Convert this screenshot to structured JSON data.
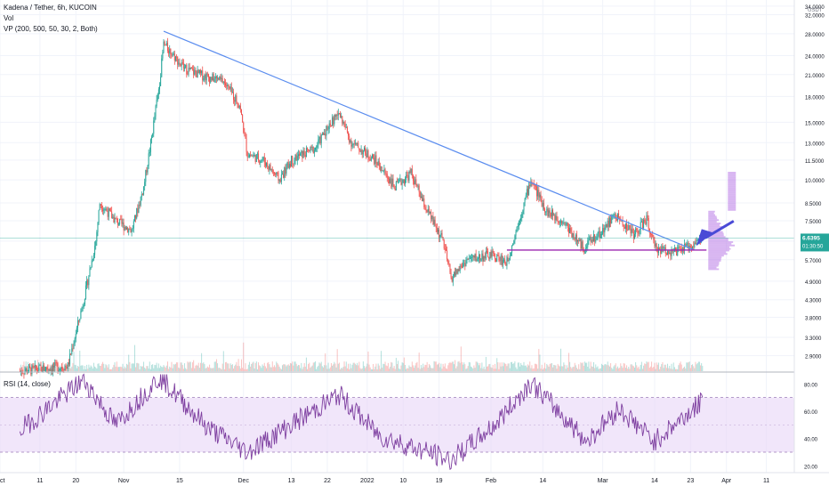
{
  "legend": {
    "symbol": "Kadena / Tether, 6h, KUCOIN",
    "volume": "Vol",
    "volume_profile": "VP (200, 500, 50, 30, 2, Both)",
    "rsi": "RSI (14, close)"
  },
  "price_badge": {
    "value": "6.6395",
    "countdown": "01:30:50"
  },
  "currency_label": "USDT",
  "colors": {
    "up": "#26a69a",
    "down": "#ef5350",
    "trendline": "#5b8def",
    "support": "#9c27b0",
    "rsi_line": "#7e3fa0",
    "rsi_band": "#e7d5f7",
    "price_badge": "#26a69a",
    "arrow": "#4a4ad6",
    "profile": "#b878e6"
  },
  "chart_data": [
    {
      "type": "candlestick",
      "title": "Kadena / Tether, 6h, KUCOIN",
      "y_scale": "log",
      "y_ticks": [
        "34.0000",
        "32.0000",
        "28.0000",
        "24.0000",
        "21.0000",
        "18.0000",
        "15.0000",
        "13.0000",
        "11.5000",
        "10.0000",
        "8.5000",
        "7.5000",
        "6.5000",
        "5.7000",
        "4.9000",
        "4.3000",
        "3.8000",
        "3.3000",
        "2.9000"
      ],
      "x_ticks": [
        "Oct",
        "11",
        "20",
        "Nov",
        "15",
        "Dec",
        "13",
        "22",
        "2022",
        "10",
        "19",
        "Feb",
        "14",
        "Mar",
        "14",
        "23",
        "Apr",
        "11"
      ],
      "ohlc_keypoints": [
        {
          "date": "2021-10-06",
          "close": 2.6
        },
        {
          "date": "2021-10-18",
          "close": 2.7
        },
        {
          "date": "2021-10-22",
          "close": 4.3
        },
        {
          "date": "2021-10-25",
          "close": 6.5
        },
        {
          "date": "2021-10-26",
          "close": 8.5
        },
        {
          "date": "2021-10-30",
          "close": 7.5
        },
        {
          "date": "2021-11-03",
          "close": 7.0
        },
        {
          "date": "2021-11-06",
          "close": 9.5
        },
        {
          "date": "2021-11-08",
          "close": 13.5
        },
        {
          "date": "2021-11-10",
          "close": 20.0
        },
        {
          "date": "2021-11-11",
          "close": 26.0
        },
        {
          "date": "2021-11-13",
          "close": 24.5
        },
        {
          "date": "2021-11-16",
          "close": 22.0
        },
        {
          "date": "2021-11-20",
          "close": 21.0
        },
        {
          "date": "2021-11-26",
          "close": 20.0
        },
        {
          "date": "2021-11-30",
          "close": 17.0
        },
        {
          "date": "2021-12-02",
          "close": 12.0
        },
        {
          "date": "2021-12-06",
          "close": 11.5
        },
        {
          "date": "2021-12-10",
          "close": 10.0
        },
        {
          "date": "2021-12-13",
          "close": 11.5
        },
        {
          "date": "2021-12-16",
          "close": 12.0
        },
        {
          "date": "2021-12-19",
          "close": 12.5
        },
        {
          "date": "2021-12-22",
          "close": 14.5
        },
        {
          "date": "2021-12-25",
          "close": 16.0
        },
        {
          "date": "2021-12-28",
          "close": 13.0
        },
        {
          "date": "2022-01-03",
          "close": 11.5
        },
        {
          "date": "2022-01-08",
          "close": 9.5
        },
        {
          "date": "2022-01-12",
          "close": 10.5
        },
        {
          "date": "2022-01-15",
          "close": 8.5
        },
        {
          "date": "2022-01-20",
          "close": 6.5
        },
        {
          "date": "2022-01-22",
          "close": 5.0
        },
        {
          "date": "2022-01-26",
          "close": 5.7
        },
        {
          "date": "2022-02-01",
          "close": 5.9
        },
        {
          "date": "2022-02-05",
          "close": 5.6
        },
        {
          "date": "2022-02-08",
          "close": 7.5
        },
        {
          "date": "2022-02-11",
          "close": 10.0
        },
        {
          "date": "2022-02-15",
          "close": 8.0
        },
        {
          "date": "2022-02-19",
          "close": 7.5
        },
        {
          "date": "2022-02-24",
          "close": 6.2
        },
        {
          "date": "2022-03-01",
          "close": 7.0
        },
        {
          "date": "2022-03-04",
          "close": 7.8
        },
        {
          "date": "2022-03-09",
          "close": 6.8
        },
        {
          "date": "2022-03-12",
          "close": 7.6
        },
        {
          "date": "2022-03-14",
          "close": 6.2
        },
        {
          "date": "2022-03-19",
          "close": 6.0
        },
        {
          "date": "2022-03-23",
          "close": 6.3
        },
        {
          "date": "2022-03-26",
          "close": 6.64
        }
      ],
      "trendline": {
        "from": {
          "date": "2021-11-11",
          "price": 28.5
        },
        "to": {
          "date": "2022-03-24",
          "price": 6.1
        }
      },
      "support_level": {
        "price": 6.1,
        "from": "2022-02-05",
        "to": "2022-03-27"
      },
      "last_price": 6.6395
    },
    {
      "type": "line",
      "title": "RSI (14, close)",
      "y_ticks": [
        "80.00",
        "60.00",
        "40.00",
        "20.00"
      ],
      "ylim": [
        15,
        88
      ],
      "band": [
        30,
        70
      ],
      "keypoints": [
        {
          "date": "2021-10-06",
          "value": 46
        },
        {
          "date": "2021-10-22",
          "value": 83
        },
        {
          "date": "2021-10-30",
          "value": 50
        },
        {
          "date": "2021-11-10",
          "value": 85
        },
        {
          "date": "2021-11-22",
          "value": 48
        },
        {
          "date": "2021-12-02",
          "value": 30
        },
        {
          "date": "2021-12-14",
          "value": 52
        },
        {
          "date": "2021-12-25",
          "value": 72
        },
        {
          "date": "2022-01-04",
          "value": 42
        },
        {
          "date": "2022-01-22",
          "value": 24
        },
        {
          "date": "2022-02-02",
          "value": 50
        },
        {
          "date": "2022-02-11",
          "value": 81
        },
        {
          "date": "2022-02-25",
          "value": 38
        },
        {
          "date": "2022-03-05",
          "value": 62
        },
        {
          "date": "2022-03-14",
          "value": 38
        },
        {
          "date": "2022-03-26",
          "value": 67
        }
      ]
    }
  ]
}
